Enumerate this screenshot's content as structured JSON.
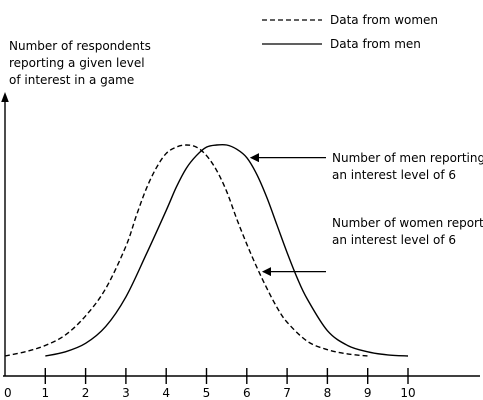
{
  "chart_data": {
    "type": "line",
    "title": "",
    "ylabel_lines": [
      "Number of respondents",
      "reporting a given level",
      "of interest in a game"
    ],
    "xlabel": "",
    "xlim": [
      0,
      10
    ],
    "ylim": [
      0,
      1
    ],
    "x_ticks": [
      "0",
      "1",
      "2",
      "3",
      "4",
      "5",
      "6",
      "7",
      "8",
      "9",
      "10"
    ],
    "legend_position": "top-right",
    "legend": [
      {
        "label": "Data from women",
        "style": "dashed"
      },
      {
        "label": "Data from men",
        "style": "solid"
      }
    ],
    "series": [
      {
        "name": "Data from women",
        "style": "dashed",
        "x": [
          0,
          0.5,
          1,
          1.5,
          2,
          2.5,
          3,
          3.25,
          3.5,
          3.75,
          4,
          4.25,
          4.5,
          4.75,
          5,
          5.25,
          5.5,
          5.75,
          6,
          6.25,
          6.5,
          6.75,
          7,
          7.5,
          8,
          8.5,
          9
        ],
        "y": [
          0.0,
          0.02,
          0.05,
          0.1,
          0.19,
          0.32,
          0.52,
          0.66,
          0.79,
          0.89,
          0.96,
          0.99,
          1.0,
          0.99,
          0.95,
          0.88,
          0.78,
          0.65,
          0.53,
          0.42,
          0.32,
          0.23,
          0.16,
          0.07,
          0.03,
          0.01,
          0.0
        ]
      },
      {
        "name": "Data from men",
        "style": "solid",
        "x": [
          1,
          1.5,
          2,
          2.5,
          3,
          3.5,
          4,
          4.25,
          4.5,
          4.75,
          5,
          5.25,
          5.5,
          5.75,
          6,
          6.25,
          6.5,
          6.75,
          7,
          7.25,
          7.5,
          8,
          8.5,
          9,
          9.5,
          10
        ],
        "y": [
          0.0,
          0.02,
          0.06,
          0.14,
          0.28,
          0.48,
          0.69,
          0.8,
          0.89,
          0.95,
          0.99,
          1.0,
          1.0,
          0.98,
          0.94,
          0.86,
          0.75,
          0.62,
          0.49,
          0.37,
          0.27,
          0.12,
          0.05,
          0.02,
          0.005,
          0.0
        ]
      }
    ],
    "annotations": [
      {
        "lines": [
          "Number of men reporting",
          "an interest level of 6"
        ],
        "series": "Data from men",
        "x": 6
      },
      {
        "lines": [
          "Number of women reporting",
          "an interest level of 6"
        ],
        "series": "Data from women",
        "x": 6.3
      }
    ],
    "colors": {
      "line": "#000000",
      "background": "#ffffff"
    }
  }
}
